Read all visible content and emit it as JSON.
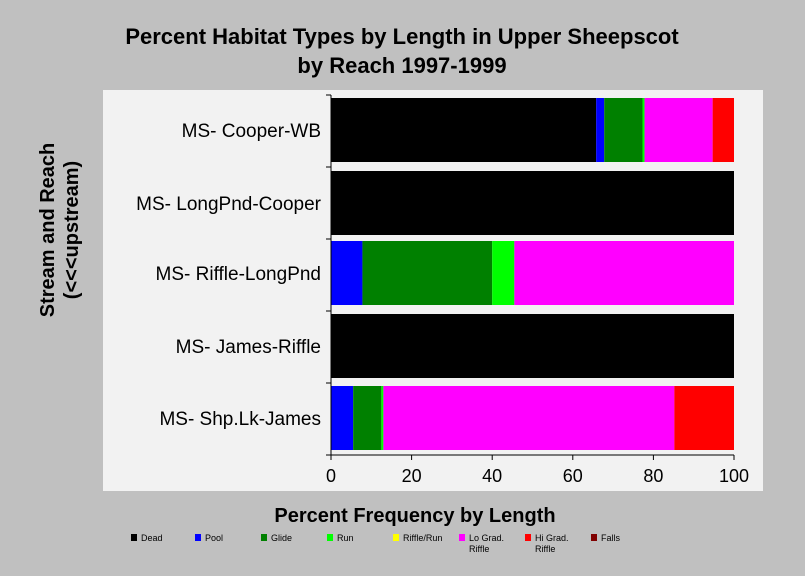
{
  "chart_data": {
    "type": "bar",
    "orientation": "horizontal",
    "stacked": true,
    "title_lines": [
      "Percent Habitat Types by Length in Upper Sheepscot",
      "by Reach 1997-1999"
    ],
    "xlabel": "Percent Frequency by Length",
    "ylabel_lines": [
      "Stream and Reach",
      "(<<<upstream)"
    ],
    "xlim": [
      0,
      100
    ],
    "xticks": [
      "0",
      "20",
      "40",
      "60",
      "80",
      "100"
    ],
    "categories": [
      "MS- Cooper-WB",
      "MS- LongPnd-Cooper",
      "MS- Riffle-LongPnd",
      "MS- James-Riffle",
      "MS- Shp.Lk-James"
    ],
    "legend_position": "bottom",
    "series": [
      {
        "name": "Dead",
        "color": "#000000",
        "values": [
          65.8,
          100,
          0,
          100,
          0
        ]
      },
      {
        "name": "Pool",
        "color": "#0000ff",
        "values": [
          2.0,
          0,
          7.8,
          0,
          5.5
        ]
      },
      {
        "name": "Glide",
        "color": "#008000",
        "values": [
          9.5,
          0,
          32.2,
          0,
          7.0
        ]
      },
      {
        "name": "Run",
        "color": "#00ff00",
        "values": [
          0.5,
          0,
          5.5,
          0,
          0.5
        ]
      },
      {
        "name": "Riffle/Run",
        "color": "#ffff00",
        "values": [
          0,
          0,
          0,
          0,
          0
        ]
      },
      {
        "name": "Lo Grad. Riffle",
        "color": "#ff00ff",
        "values": [
          16.9,
          0,
          54.5,
          0,
          72.2
        ]
      },
      {
        "name": "Hi Grad. Riffle",
        "color": "#ff0000",
        "values": [
          5.3,
          0,
          0,
          0,
          14.8
        ]
      },
      {
        "name": "Falls",
        "color": "#800000",
        "values": [
          0,
          0,
          0,
          0,
          0
        ]
      }
    ]
  }
}
